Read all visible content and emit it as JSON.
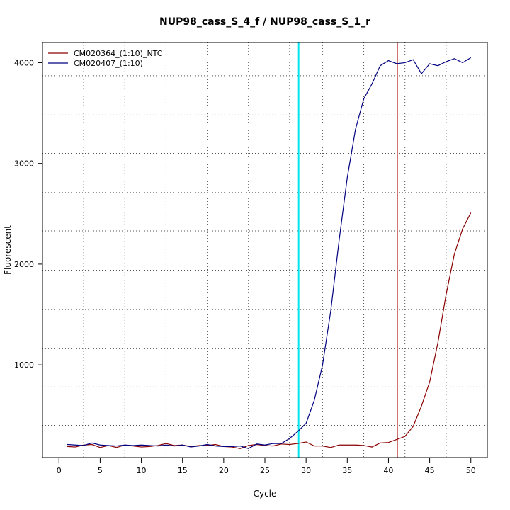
{
  "chart_data": {
    "type": "line",
    "title": "NUP98_cass_S_4_f / NUP98_cass_S_1_r",
    "xlabel": "Cycle",
    "ylabel": "Fluorescent",
    "xlim": [
      -2,
      52
    ],
    "ylim": [
      80,
      4200
    ],
    "x_ticks": [
      0,
      5,
      10,
      15,
      20,
      25,
      30,
      35,
      40,
      45,
      50
    ],
    "y_ticks": [
      1000,
      2000,
      3000,
      4000
    ],
    "grid_v": [
      3,
      8,
      13,
      18,
      23,
      28,
      32,
      37,
      42,
      47
    ],
    "grid_h": [
      400,
      780,
      1160,
      1550,
      1940,
      2330,
      2710,
      3100,
      3480,
      3870
    ],
    "threshold_lines": [
      {
        "x": 29.1,
        "color": "#00e5ee"
      },
      {
        "x": 41.1,
        "color": "#c04040"
      }
    ],
    "legend_position": "top-left",
    "x": [
      1,
      2,
      3,
      4,
      5,
      6,
      7,
      8,
      9,
      10,
      11,
      12,
      13,
      14,
      15,
      16,
      17,
      18,
      19,
      20,
      21,
      22,
      23,
      24,
      25,
      26,
      27,
      28,
      29,
      30,
      31,
      32,
      33,
      34,
      35,
      36,
      37,
      38,
      39,
      40,
      41,
      42,
      43,
      44,
      45,
      46,
      47,
      48,
      49,
      50
    ],
    "series": [
      {
        "name": "CM020364_(1:10)_NTC",
        "color": "#8b0000",
        "values": [
          190,
          185,
          205,
          210,
          180,
          200,
          180,
          205,
          195,
          185,
          190,
          200,
          220,
          200,
          205,
          190,
          200,
          200,
          210,
          190,
          185,
          170,
          200,
          210,
          200,
          195,
          215,
          210,
          220,
          235,
          195,
          195,
          180,
          205,
          205,
          205,
          200,
          185,
          225,
          230,
          260,
          290,
          390,
          590,
          830,
          1220,
          1700,
          2100,
          2350,
          2510
        ]
      },
      {
        "name": "CM020407_(1:10)",
        "color": "#000080",
        "values": [
          210,
          205,
          200,
          225,
          205,
          200,
          195,
          205,
          200,
          205,
          200,
          195,
          205,
          195,
          205,
          185,
          195,
          210,
          195,
          190,
          190,
          195,
          170,
          215,
          205,
          220,
          220,
          270,
          340,
          420,
          650,
          1000,
          1540,
          2230,
          2860,
          3340,
          3640,
          3790,
          3970,
          4020,
          3990,
          4000,
          4030,
          3890,
          3990,
          3970,
          4010,
          4040,
          4000,
          4050
        ]
      }
    ]
  }
}
